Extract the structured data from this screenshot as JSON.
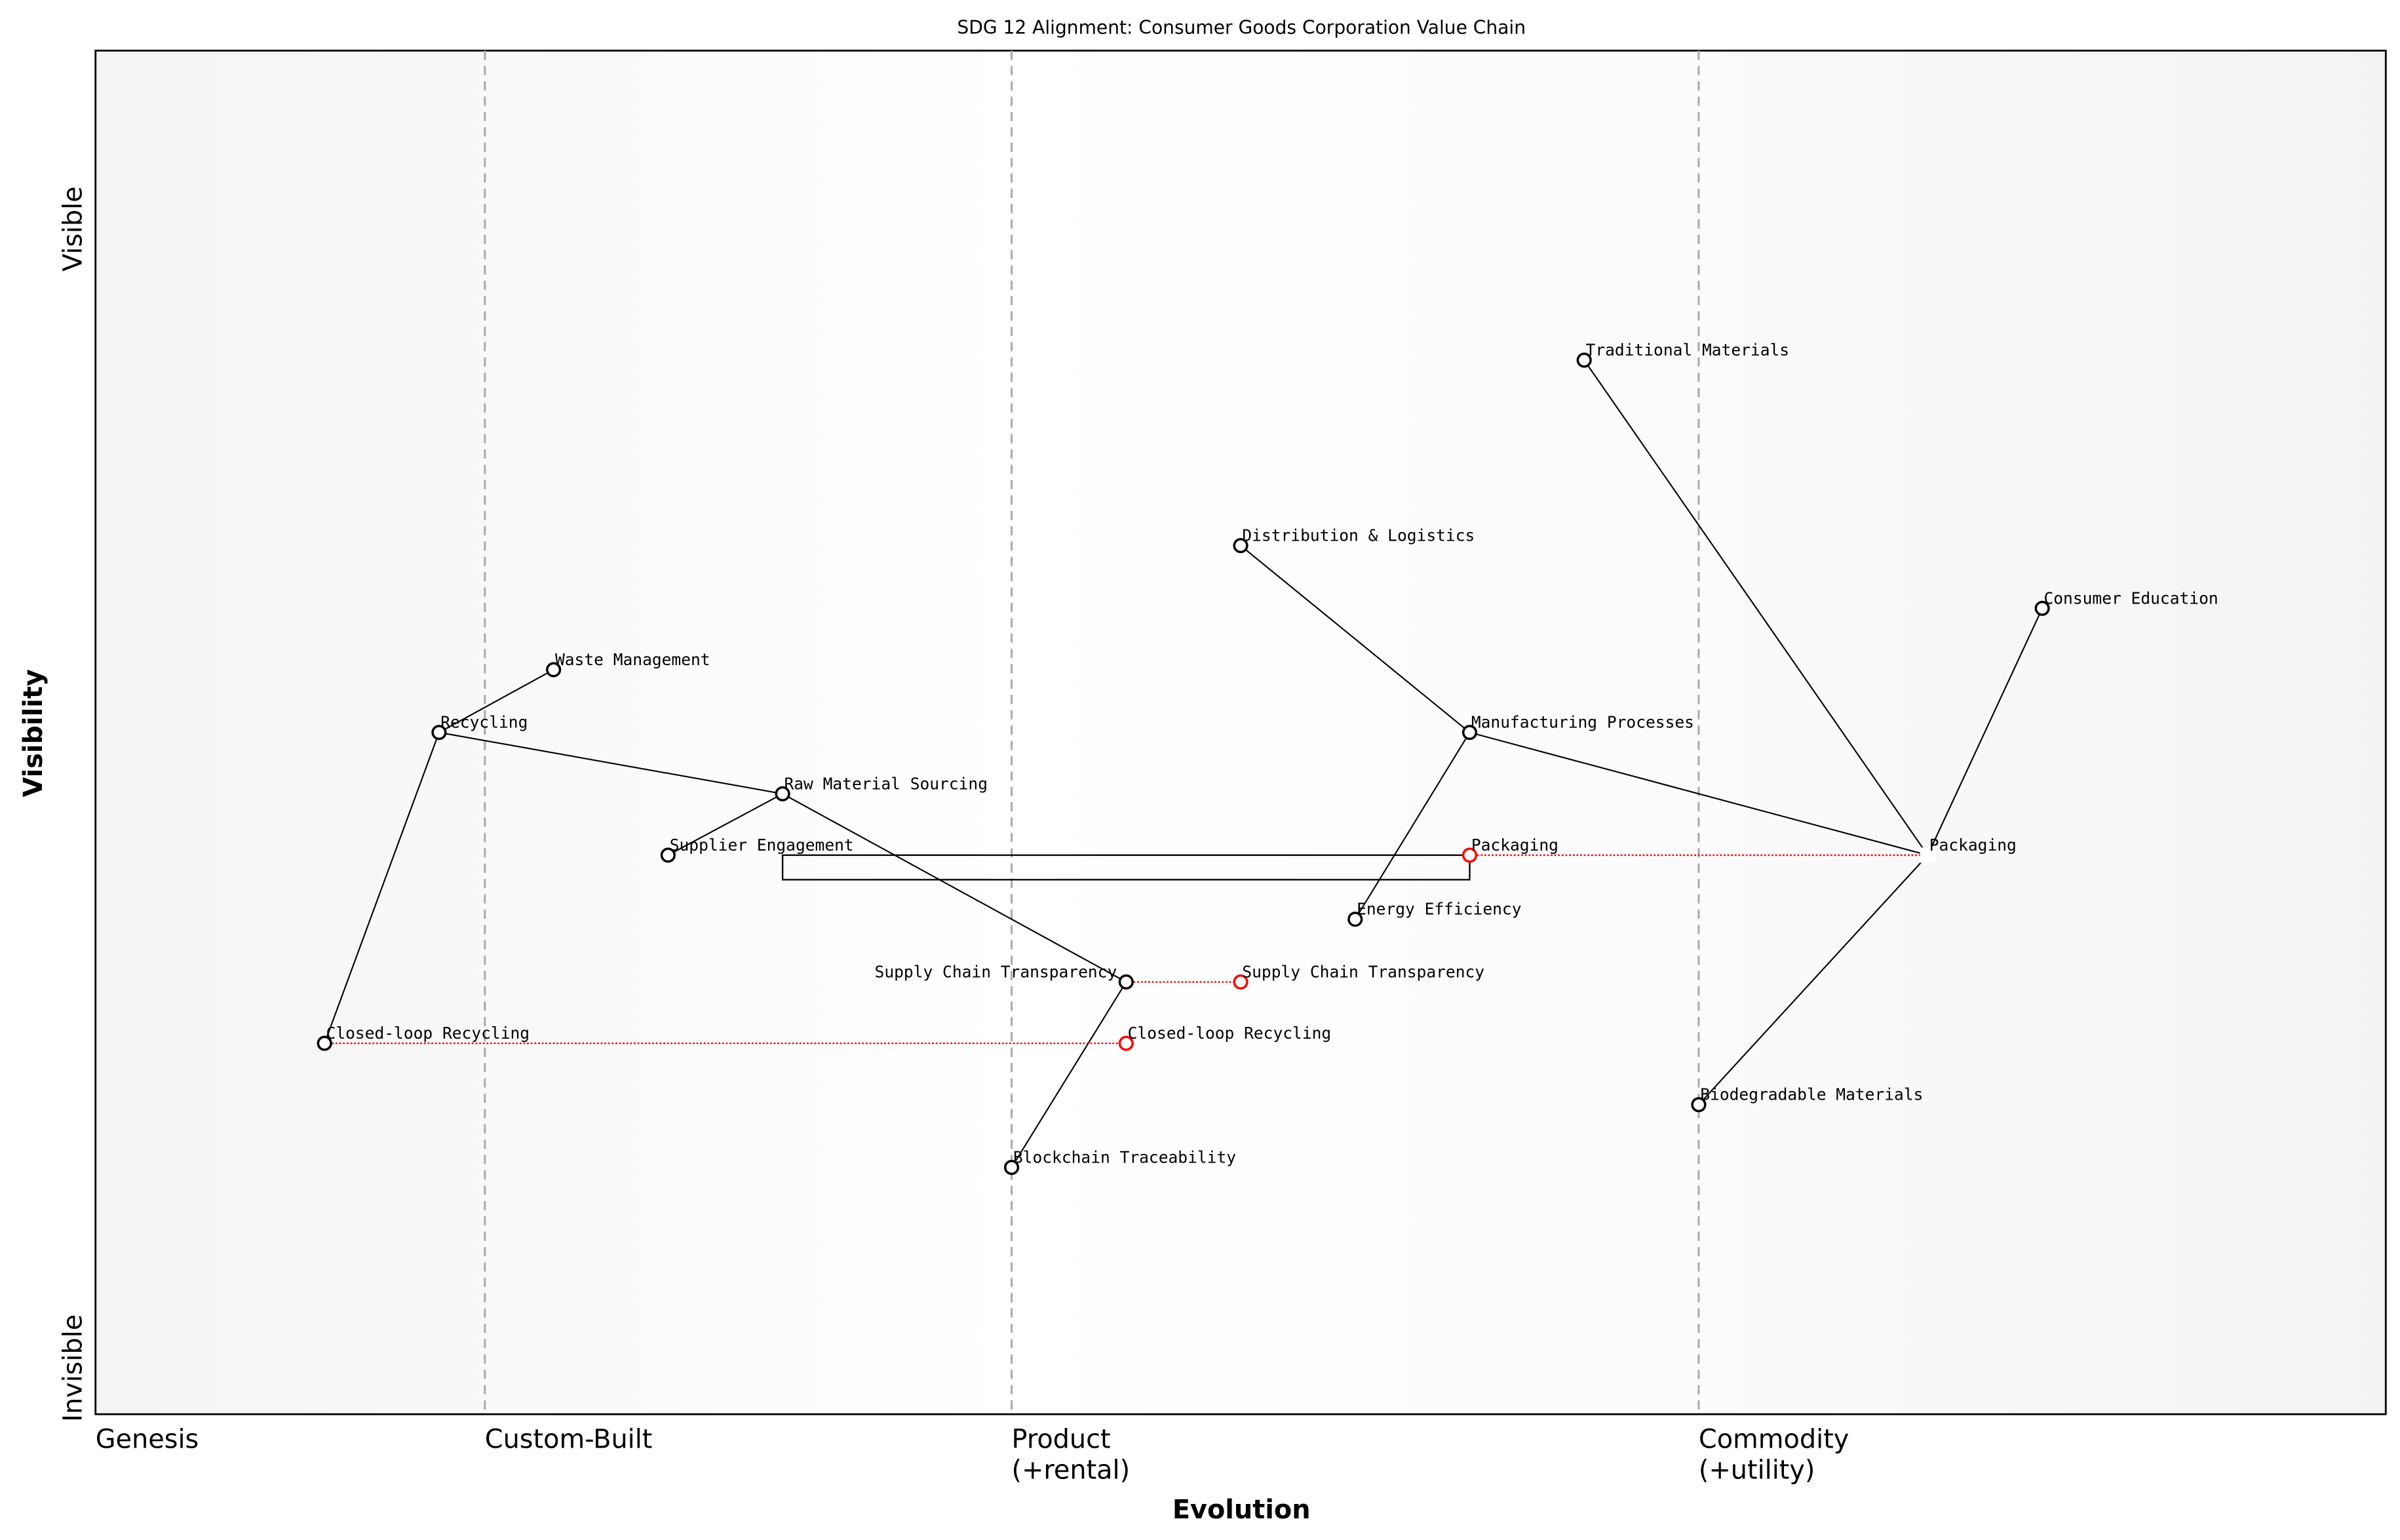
{
  "title": "SDG 12 Alignment: Consumer Goods Corporation Value Chain",
  "axes": {
    "x_label": "Evolution",
    "y_label": "Visibility",
    "y_top": "Visible",
    "y_bottom": "Invisible",
    "stages": [
      {
        "label": "Genesis",
        "at": 0.0
      },
      {
        "label": "Custom-Built",
        "at": 0.17
      },
      {
        "label": "Product\n(+rental)",
        "at": 0.4
      },
      {
        "label": "Commodity\n(+utility)",
        "at": 0.7
      }
    ]
  },
  "colors": {
    "node": "#000000",
    "evolved_node": "#ff0000",
    "evolution_line": "#ff0000",
    "stage_divider": "#aaaaaa"
  },
  "nodes": [
    {
      "id": "n1",
      "label": "Traditional Materials",
      "evolution": 0.65,
      "visibility": 0.773,
      "style": "normal"
    },
    {
      "id": "n2",
      "label": "Distribution & Logistics",
      "evolution": 0.5,
      "visibility": 0.637,
      "style": "normal"
    },
    {
      "id": "n3",
      "label": "Consumer Education",
      "evolution": 0.85,
      "visibility": 0.591,
      "style": "normal"
    },
    {
      "id": "n4",
      "label": "Waste Management",
      "evolution": 0.2,
      "visibility": 0.546,
      "style": "normal"
    },
    {
      "id": "n5",
      "label": "Recycling",
      "evolution": 0.15,
      "visibility": 0.5,
      "style": "normal"
    },
    {
      "id": "n6",
      "label": "Manufacturing Processes",
      "evolution": 0.6,
      "visibility": 0.5,
      "style": "normal"
    },
    {
      "id": "n7",
      "label": "Raw Material Sourcing",
      "evolution": 0.3,
      "visibility": 0.455,
      "style": "normal"
    },
    {
      "id": "n8",
      "label": "Supplier Engagement",
      "evolution": 0.25,
      "visibility": 0.41,
      "style": "normal"
    },
    {
      "id": "n9",
      "label": "Packaging",
      "evolution": 0.6,
      "visibility": 0.41,
      "style": "evolved"
    },
    {
      "id": "n10",
      "label": "Packaging",
      "evolution": 0.8,
      "visibility": 0.41,
      "style": "hidden"
    },
    {
      "id": "n11",
      "label": "Energy Efficiency",
      "evolution": 0.55,
      "visibility": 0.363,
      "style": "normal"
    },
    {
      "id": "n12",
      "label": "Supply Chain Transparency",
      "evolution": 0.45,
      "visibility": 0.317,
      "style": "normal"
    },
    {
      "id": "n13",
      "label": "Supply Chain Transparency",
      "evolution": 0.5,
      "visibility": 0.317,
      "style": "evolved"
    },
    {
      "id": "n14",
      "label": "Closed-loop Recycling",
      "evolution": 0.1,
      "visibility": 0.272,
      "style": "normal"
    },
    {
      "id": "n15",
      "label": "Closed-loop Recycling",
      "evolution": 0.45,
      "visibility": 0.272,
      "style": "evolved"
    },
    {
      "id": "n16",
      "label": "Biodegradable Materials",
      "evolution": 0.7,
      "visibility": 0.227,
      "style": "normal"
    },
    {
      "id": "n17",
      "label": "Blockchain Traceability",
      "evolution": 0.4,
      "visibility": 0.181,
      "style": "normal"
    }
  ],
  "links": [
    [
      "n4",
      "n5"
    ],
    [
      "n5",
      "n7"
    ],
    [
      "n5",
      "n14"
    ],
    [
      "n7",
      "n8"
    ],
    [
      "n7",
      "n12"
    ],
    [
      "n12",
      "n17"
    ],
    [
      "n2",
      "n6"
    ],
    [
      "n6",
      "n11"
    ],
    [
      "n6",
      "n10"
    ],
    [
      "n1",
      "n10"
    ],
    [
      "n3",
      "n10"
    ],
    [
      "n16",
      "n10"
    ]
  ],
  "evolutions": [
    [
      "n14",
      "n15"
    ],
    [
      "n12",
      "n13"
    ],
    [
      "n9",
      "n10"
    ]
  ],
  "pipelines": [
    {
      "from_evolution": 0.3,
      "to_evolution": 0.6,
      "visibility_top": 0.41,
      "visibility_bottom": 0.392
    }
  ]
}
